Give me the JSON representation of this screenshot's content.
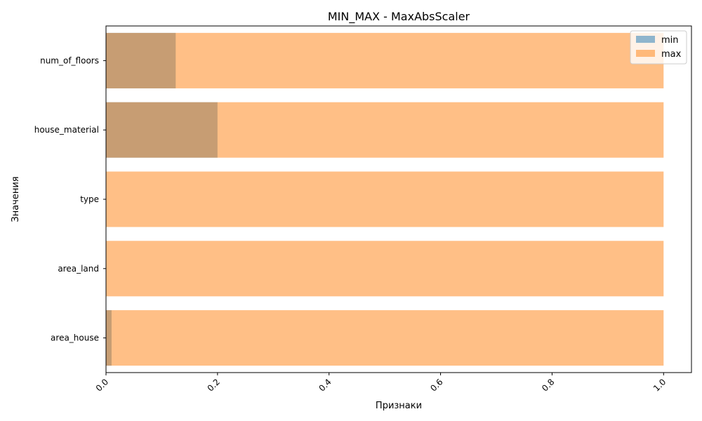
{
  "chart_data": {
    "type": "bar",
    "orientation": "horizontal",
    "title": "MIN_MAX - MaxAbsScaler",
    "xlabel": "Признаки",
    "ylabel": "Значения",
    "categories": [
      "num_of_floors",
      "house_material",
      "type",
      "area_land",
      "area_house"
    ],
    "series": [
      {
        "name": "min",
        "values": [
          0.125,
          0.2,
          0.0,
          0.0,
          0.01
        ],
        "color": "#1f77b4",
        "alpha": 0.5
      },
      {
        "name": "max",
        "values": [
          1.0,
          1.0,
          1.0,
          1.0,
          1.0
        ],
        "color": "#ff7f0e",
        "alpha": 0.5
      }
    ],
    "xlim": [
      0.0,
      1.05
    ],
    "xticks": [
      "0.0",
      "0.2",
      "0.4",
      "0.6",
      "0.8",
      "1.0"
    ],
    "xtick_values": [
      0.0,
      0.2,
      0.4,
      0.6,
      0.8,
      1.0
    ],
    "xtick_rotation": 45,
    "grid": false,
    "legend": "top-right"
  }
}
